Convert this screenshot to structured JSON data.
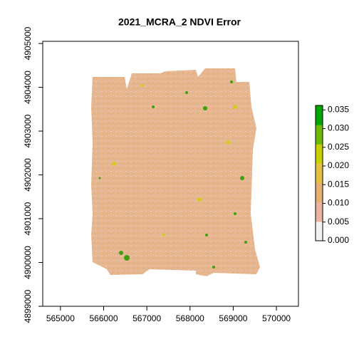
{
  "chart_data": {
    "type": "raster",
    "title": "2021_MCRA_2 NDVI Error",
    "xlim": [
      564590,
      570510
    ],
    "ylim": [
      4899000,
      4905050
    ],
    "xticks": [
      565000,
      566000,
      567000,
      568000,
      569000,
      570000
    ],
    "yticks": [
      4899000,
      4900000,
      4901000,
      4902000,
      4903000,
      4904000,
      4905000
    ],
    "colorbar": {
      "lim": [
        0,
        0.0362
      ],
      "colors": [
        "#f2f2f2",
        "#ebb3a0",
        "#e5b070",
        "#e6c040",
        "#c9d000",
        "#6fb800",
        "#00a600"
      ],
      "ticks": [
        {
          "value": 0,
          "label": "0.000"
        },
        {
          "value": 0.005,
          "label": "0.005"
        },
        {
          "value": 0.01,
          "label": "0.010"
        },
        {
          "value": 0.015,
          "label": "0.015"
        },
        {
          "value": 0.02,
          "label": "0.020"
        },
        {
          "value": 0.025,
          "label": "0.025"
        },
        {
          "value": 0.03,
          "label": "0.030"
        },
        {
          "value": 0.035,
          "label": "0.035"
        }
      ]
    }
  }
}
